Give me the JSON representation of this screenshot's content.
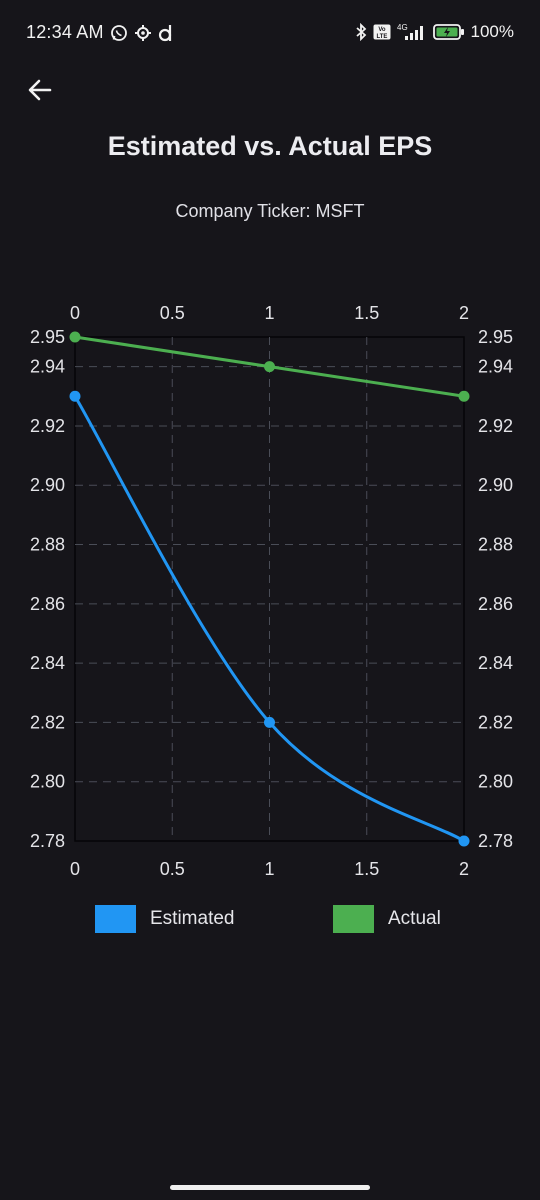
{
  "status_bar": {
    "time": "12:34 AM",
    "notification_icons": [
      "whatsapp-icon",
      "settings-gear-icon",
      "d-app-icon"
    ],
    "right_icons": [
      "bluetooth-icon",
      "volte-icon",
      "signal-4g-icon",
      "battery-charging-icon"
    ],
    "network": "4G",
    "volte": "Vo LTE",
    "battery": "100%"
  },
  "header": {
    "back_icon": "arrow-left-icon",
    "title": "Estimated vs. Actual EPS",
    "subtitle": "Company Ticker: MSFT"
  },
  "chart_data": {
    "type": "line",
    "title": "Estimated vs. Actual EPS",
    "subtitle": "Company Ticker: MSFT",
    "xlabel": "",
    "ylabel": "",
    "x_ticks": [
      "0",
      "0.5",
      "1",
      "1.5",
      "2"
    ],
    "y_ticks": [
      "2.95",
      "2.94",
      "2.92",
      "2.90",
      "2.88",
      "2.86",
      "2.84",
      "2.82",
      "2.80",
      "2.78"
    ],
    "xlim": [
      0,
      2
    ],
    "ylim": [
      2.78,
      2.95
    ],
    "grid": true,
    "legend_position": "bottom",
    "series": [
      {
        "name": "Estimated",
        "color": "#2196f3",
        "x": [
          0,
          1,
          2
        ],
        "values": [
          2.93,
          2.82,
          2.78
        ],
        "curved": true
      },
      {
        "name": "Actual",
        "color": "#4caf50",
        "x": [
          0,
          1,
          2
        ],
        "values": [
          2.95,
          2.94,
          2.93
        ],
        "curved": false
      }
    ]
  },
  "colors": {
    "background": "#16151a",
    "grid": "#4a4d57",
    "axis_border": "#050507",
    "estimated": "#2196f3",
    "actual": "#4caf50"
  }
}
